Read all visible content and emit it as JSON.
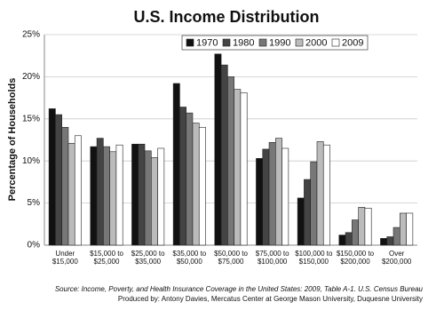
{
  "chart_data": {
    "type": "bar",
    "title": "U.S. Income Distribution",
    "y_label": "Percentage of Households",
    "categories": [
      "Under\n$15,000",
      "$15,000 to\n$25,000",
      "$25,000 to\n$35,000",
      "$35,000 to\n$50,000",
      "$50,000 to\n$75,000",
      "$75,000 to\n$100,000",
      "$100,000 to\n$150,000",
      "$150,000 to\n$200,000",
      "Over\n$200,000"
    ],
    "series": [
      {
        "name": "1970",
        "color": "#111111",
        "values": [
          16.2,
          11.7,
          12.0,
          19.2,
          22.7,
          10.3,
          5.6,
          1.2,
          0.8
        ]
      },
      {
        "name": "1980",
        "color": "#444444",
        "values": [
          15.5,
          12.7,
          12.0,
          16.4,
          21.4,
          11.4,
          7.8,
          1.5,
          1.0
        ]
      },
      {
        "name": "1990",
        "color": "#777777",
        "values": [
          14.0,
          11.7,
          11.2,
          15.7,
          20.0,
          12.2,
          9.9,
          3.0,
          2.1
        ]
      },
      {
        "name": "2000",
        "color": "#bbbbbb",
        "values": [
          12.1,
          11.1,
          10.4,
          14.5,
          18.5,
          12.7,
          12.3,
          4.5,
          3.8
        ]
      },
      {
        "name": "2009",
        "color": "#ffffff",
        "values": [
          13.0,
          11.9,
          11.5,
          14.0,
          18.1,
          11.5,
          11.9,
          4.4,
          3.8
        ]
      }
    ],
    "ylim": [
      0,
      25
    ],
    "yticks": [
      {
        "value": 0,
        "label": "0%"
      },
      {
        "value": 5,
        "label": "5%"
      },
      {
        "value": 10,
        "label": "10%"
      },
      {
        "value": 15,
        "label": "15%"
      },
      {
        "value": 20,
        "label": "20%"
      },
      {
        "value": 25,
        "label": "25%"
      }
    ],
    "grid": true,
    "legend": "top",
    "source": "Source: Income, Poverty, and Health Insurance Coverage in the United States: 2009, Table A-1. U.S. Census Bureau",
    "credit": "Produced by: Antony Davies, Mercatus Center at George Mason University, Duquesne University"
  }
}
